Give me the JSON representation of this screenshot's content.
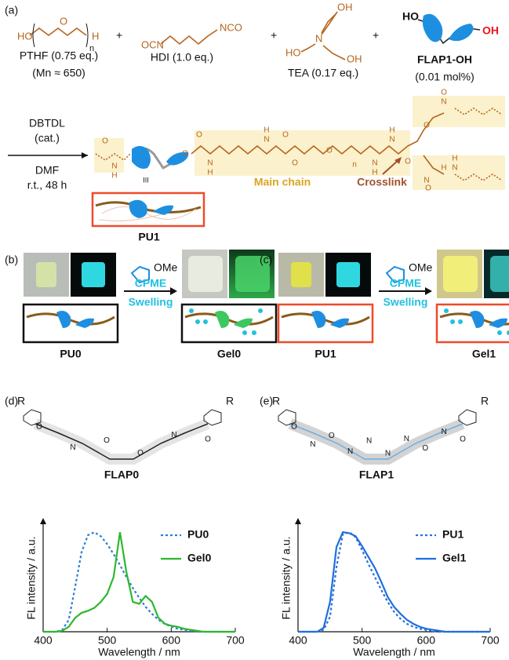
{
  "panel_a": {
    "label": "(a)",
    "plus": "+",
    "pthf": {
      "atoms": [
        "HO",
        "O",
        "n",
        "H"
      ],
      "name": "PTHF (0.75 eq.)",
      "mn": "(Mn ≈ 650)"
    },
    "hdi": {
      "atoms": [
        "OCN",
        "NCO"
      ],
      "name": "HDI (1.0 eq.)"
    },
    "tea": {
      "atoms": [
        "OH",
        "N",
        "HO",
        "OH"
      ],
      "name": "TEA (0.17 eq.)"
    },
    "flap1_oh": {
      "atoms": [
        "HO",
        "OH"
      ],
      "name": "FLAP1-OH",
      "amount": "(0.01 mol%)"
    },
    "conditions": [
      "DBTDL",
      "(cat.)",
      "DMF",
      "r.t., 48 h"
    ],
    "chain_atoms": [
      "O",
      "N",
      "H",
      "O",
      "O",
      "N",
      "H",
      "N",
      "H",
      "O",
      "O",
      "O",
      "n",
      "N",
      "H",
      "N",
      "H",
      "O",
      "O",
      "N",
      "O",
      "N",
      "H",
      "O",
      "N",
      "H"
    ],
    "repeat_mark": "III",
    "main_chain": "Main chain",
    "crosslink": "Crosslink",
    "product": "PU1"
  },
  "panel_b": {
    "label": "(b)",
    "substituent": "OMe",
    "solvent": "CPME",
    "process": "Swelling",
    "before": "PU0",
    "after": "Gel0"
  },
  "panel_c": {
    "label": "(c)",
    "substituent": "OMe",
    "solvent": "CPME",
    "process": "Swelling",
    "before": "PU1",
    "after": "Gel1"
  },
  "panel_d": {
    "label": "(d)",
    "molecule": "FLAP0",
    "substituent": "R",
    "atoms": [
      "O",
      "N",
      "O",
      "O",
      "N",
      "O"
    ]
  },
  "panel_e": {
    "label": "(e)",
    "molecule": "FLAP1",
    "substituent": "R",
    "atoms": [
      "O",
      "N",
      "O",
      "N",
      "N",
      "N",
      "N",
      "O",
      "N",
      "O"
    ]
  },
  "chart_data": [
    {
      "type": "line",
      "xlabel": "Wavelength / nm",
      "ylabel": "FL intensity / a.u.",
      "x": [
        400,
        410,
        420,
        430,
        440,
        450,
        460,
        470,
        480,
        490,
        500,
        510,
        520,
        530,
        540,
        550,
        560,
        570,
        580,
        590,
        600,
        610,
        620,
        630,
        640,
        650,
        660,
        670,
        680,
        690,
        700
      ],
      "xlim": [
        400,
        700
      ],
      "xticks": [
        400,
        500,
        600,
        700
      ],
      "ylim": [
        0,
        1.08
      ],
      "legend": "upper right",
      "series": [
        {
          "name": "PU0",
          "color": "#2a7fd4",
          "style": "dotted",
          "values": [
            0,
            0,
            0,
            0.02,
            0.12,
            0.45,
            0.8,
            0.97,
            1.0,
            0.96,
            0.88,
            0.78,
            0.67,
            0.55,
            0.44,
            0.34,
            0.25,
            0.18,
            0.12,
            0.08,
            0.05,
            0.03,
            0.02,
            0.01,
            0,
            0,
            0,
            0,
            0,
            0,
            0
          ]
        },
        {
          "name": "Gel0",
          "color": "#2db82d",
          "style": "solid",
          "values": [
            0,
            0,
            0,
            0.01,
            0.05,
            0.14,
            0.19,
            0.21,
            0.24,
            0.3,
            0.38,
            0.55,
            1.0,
            0.6,
            0.3,
            0.28,
            0.36,
            0.3,
            0.14,
            0.08,
            0.06,
            0.05,
            0.03,
            0.02,
            0.01,
            0,
            0,
            0,
            0,
            0,
            0
          ]
        }
      ]
    },
    {
      "type": "line",
      "xlabel": "Wavelength / nm",
      "ylabel": "FL intensity / a.u.",
      "x": [
        400,
        410,
        420,
        430,
        440,
        450,
        460,
        470,
        480,
        490,
        500,
        510,
        520,
        530,
        540,
        550,
        560,
        570,
        580,
        590,
        600,
        610,
        620,
        630,
        640,
        650,
        660,
        670,
        680,
        690,
        700
      ],
      "xlim": [
        400,
        700
      ],
      "xticks": [
        400,
        500,
        600,
        700
      ],
      "ylim": [
        0,
        1.08
      ],
      "legend": "upper right",
      "series": [
        {
          "name": "PU1",
          "color": "#2a6fd8",
          "style": "dotted",
          "values": [
            0,
            0,
            0,
            0,
            0.02,
            0.15,
            0.65,
            0.98,
            1.0,
            0.95,
            0.82,
            0.68,
            0.55,
            0.42,
            0.3,
            0.2,
            0.13,
            0.08,
            0.05,
            0.03,
            0.02,
            0.01,
            0,
            0,
            0,
            0,
            0,
            0,
            0,
            0,
            0
          ]
        },
        {
          "name": "Gel1",
          "color": "#1f6fe0",
          "style": "solid",
          "values": [
            0,
            0,
            0,
            0,
            0.04,
            0.3,
            0.85,
            1.0,
            0.99,
            0.96,
            0.86,
            0.75,
            0.64,
            0.5,
            0.35,
            0.25,
            0.18,
            0.12,
            0.08,
            0.05,
            0.03,
            0.02,
            0.01,
            0,
            0,
            0,
            0,
            0,
            0,
            0,
            0
          ]
        }
      ]
    }
  ]
}
